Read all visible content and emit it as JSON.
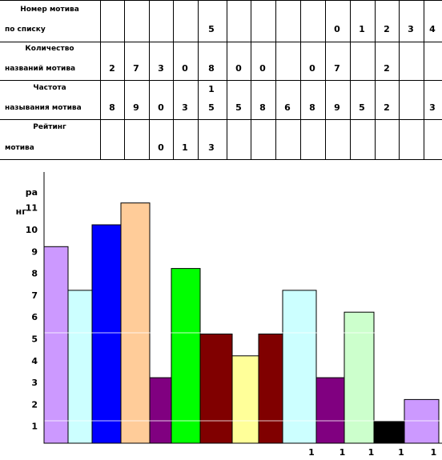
{
  "table": {
    "row_labels": [
      [
        "Номер мотива",
        "по списку"
      ],
      [
        "Количество",
        "названий мотива"
      ],
      [
        "Частота",
        "называния мотива"
      ],
      [
        "Рейтинг",
        "мотива"
      ]
    ],
    "row1": [
      "",
      "",
      "",
      "",
      "5",
      "",
      "",
      "",
      "",
      "0",
      "1",
      "2",
      "3",
      "4"
    ],
    "row2": [
      "2",
      "7",
      "3",
      "0",
      "8",
      "0",
      "0",
      "",
      "0",
      "7",
      "",
      "2",
      "",
      ""
    ],
    "row3_top": [
      "",
      "",
      "",
      "",
      "1",
      "",
      "",
      "",
      "",
      "",
      "",
      "",
      "",
      ""
    ],
    "row3": [
      "8",
      "9",
      "0",
      "3",
      "5",
      "5",
      "8",
      "6",
      "8",
      "9",
      "5",
      "2",
      "",
      "3"
    ],
    "row4": [
      "",
      "",
      "0",
      "1",
      "3",
      "",
      "",
      "",
      "",
      "",
      "",
      "",
      "",
      ""
    ]
  },
  "chart_data": {
    "type": "bar",
    "ylabel_lines": [
      "ра",
      "нг"
    ],
    "ylim": [
      0,
      11
    ],
    "yticks": [
      1,
      2,
      3,
      4,
      5,
      6,
      7,
      8,
      9,
      10,
      11
    ],
    "values": [
      9,
      7,
      10,
      11,
      3,
      8,
      5,
      4,
      5,
      7,
      3,
      6,
      1,
      2
    ],
    "colors": [
      "#cc99ff",
      "#ccffff",
      "#0000ff",
      "#ffcc99",
      "#800080",
      "#00ff00",
      "#800000",
      "#ffff99",
      "#800000",
      "#ccffff",
      "#800080",
      "#ccffcc",
      "#000000",
      "#cc99ff"
    ],
    "xtick_labels": [
      "",
      "",
      "",
      "",
      "",
      "",
      "",
      "",
      "",
      "1",
      "1",
      "1",
      "1",
      "1"
    ]
  }
}
